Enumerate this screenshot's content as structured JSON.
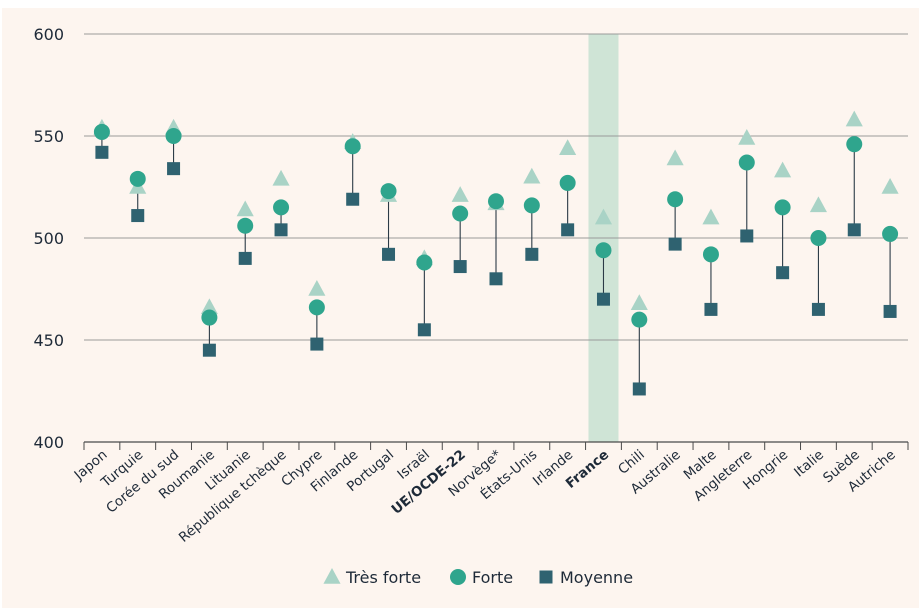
{
  "colors": {
    "background": "#fdf5ef",
    "gridline": "#9a9a9a",
    "axis": "#4a4a4a",
    "connector": "#2b3a46",
    "tres_forte": "#a9d3c6",
    "forte": "#2fa58d",
    "moyenne": "#2f6270",
    "highlight_band": "#cfe4d6"
  },
  "chart_data": {
    "type": "scatter",
    "title": "",
    "xlabel": "",
    "ylabel": "",
    "ylim": [
      400,
      600
    ],
    "yticks": [
      "400",
      "450",
      "500",
      "550",
      "600"
    ],
    "grid": true,
    "legend_position": "bottom-center",
    "highlight_category": "France",
    "bold_categories": [
      "UE/OCDE-22",
      "France"
    ],
    "categories": [
      "Japon",
      "Turquie",
      "Corée du sud",
      "Roumanie",
      "Lituanie",
      "République tchèque",
      "Chypre",
      "Finlande",
      "Portugal",
      "Israël",
      "UE/OCDE-22",
      "Norvège*",
      "États-Unis",
      "Irlande",
      "France",
      "Chili",
      "Australie",
      "Malte",
      "Angleterre",
      "Hongrie",
      "Italie",
      "Suède",
      "Autriche"
    ],
    "series": [
      {
        "name": "Très forte",
        "marker": "triangle",
        "values": [
          554,
          525,
          554,
          466,
          514,
          529,
          475,
          547,
          521,
          490,
          521,
          517,
          530,
          544,
          510,
          468,
          539,
          510,
          549,
          533,
          516,
          558,
          525
        ]
      },
      {
        "name": "Forte",
        "marker": "circle",
        "values": [
          552,
          529,
          550,
          461,
          506,
          515,
          466,
          545,
          523,
          488,
          512,
          518,
          516,
          527,
          494,
          460,
          519,
          492,
          537,
          515,
          500,
          546,
          502
        ]
      },
      {
        "name": "Moyenne",
        "marker": "square",
        "values": [
          542,
          511,
          534,
          445,
          490,
          504,
          448,
          519,
          492,
          455,
          486,
          480,
          492,
          504,
          470,
          426,
          497,
          465,
          501,
          483,
          465,
          504,
          464
        ]
      }
    ]
  }
}
